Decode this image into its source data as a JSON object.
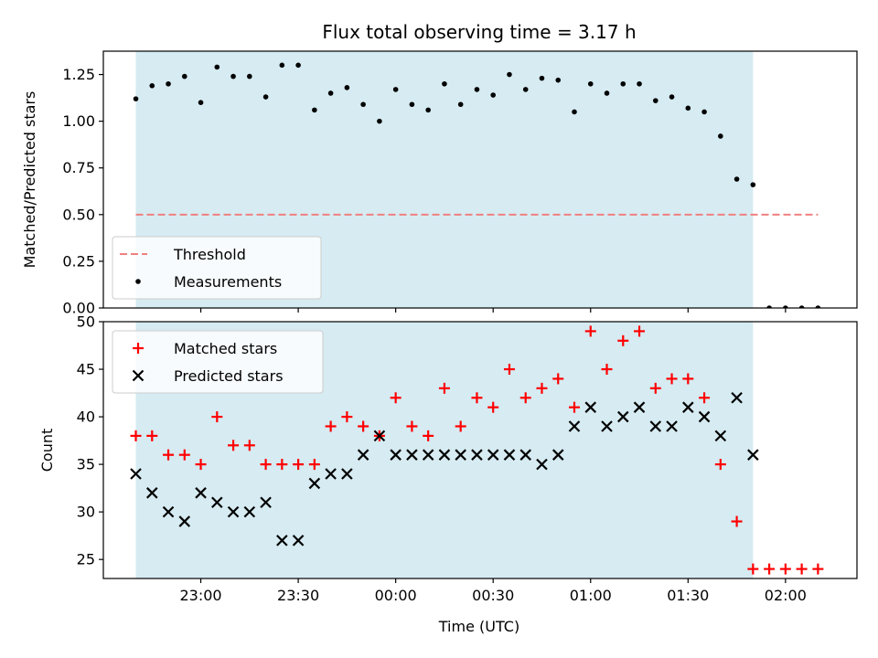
{
  "chart_data": {
    "type": "scatter",
    "title": "Flux total observing time = 3.17 h",
    "xlabel": "Time (UTC)",
    "x_ticks": [
      "23:00",
      "23:30",
      "00:00",
      "00:30",
      "01:00",
      "01:30",
      "02:00"
    ],
    "x_tick_minutes": [
      0,
      30,
      60,
      90,
      120,
      150,
      180
    ],
    "xlim_minutes": [
      -30,
      202
    ],
    "observing_window_minutes": [
      -20,
      170
    ],
    "panels": [
      {
        "ylabel": "Matched/Predicted stars",
        "ylim": [
          0,
          1.375
        ],
        "y_ticks": [
          "0.00",
          "0.25",
          "0.50",
          "0.75",
          "1.00",
          "1.25"
        ],
        "threshold": {
          "name": "Threshold",
          "value": 0.5,
          "x_range_minutes": [
            -20,
            190
          ],
          "color": "#f08080"
        },
        "legend": [
          "Threshold",
          "Measurements"
        ],
        "legend_position": "lower-left",
        "series": [
          {
            "name": "Measurements",
            "color": "#000000",
            "x_minutes": [
              -20,
              -15,
              -10,
              -5,
              0,
              5,
              10,
              15,
              20,
              25,
              30,
              35,
              40,
              45,
              50,
              55,
              60,
              65,
              70,
              75,
              80,
              85,
              90,
              95,
              100,
              105,
              110,
              115,
              120,
              125,
              130,
              135,
              140,
              145,
              150,
              155,
              160,
              165,
              170,
              175,
              180,
              185,
              190
            ],
            "values": [
              1.12,
              1.19,
              1.2,
              1.24,
              1.1,
              1.29,
              1.24,
              1.24,
              1.13,
              1.3,
              1.3,
              1.06,
              1.15,
              1.18,
              1.09,
              1.0,
              1.17,
              1.09,
              1.06,
              1.2,
              1.09,
              1.17,
              1.14,
              1.25,
              1.17,
              1.23,
              1.22,
              1.05,
              1.2,
              1.15,
              1.2,
              1.2,
              1.11,
              1.13,
              1.07,
              1.05,
              0.92,
              0.69,
              0.66,
              0.0,
              0.0,
              0.0,
              0.0
            ]
          }
        ]
      },
      {
        "ylabel": "Count",
        "ylim": [
          23,
          50
        ],
        "y_ticks": [
          "25",
          "30",
          "35",
          "40",
          "45",
          "50"
        ],
        "legend": [
          "Matched stars",
          "Predicted stars"
        ],
        "legend_position": "upper-left",
        "series": [
          {
            "name": "Matched stars",
            "marker": "plus",
            "color": "#ff0000",
            "x_minutes": [
              -20,
              -15,
              -10,
              -5,
              0,
              5,
              10,
              15,
              20,
              25,
              30,
              35,
              40,
              45,
              50,
              55,
              60,
              65,
              70,
              75,
              80,
              85,
              90,
              95,
              100,
              105,
              110,
              115,
              120,
              125,
              130,
              135,
              140,
              145,
              150,
              155,
              160,
              165,
              170,
              175,
              180,
              185,
              190
            ],
            "values": [
              38,
              38,
              36,
              36,
              35,
              40,
              37,
              37,
              35,
              35,
              35,
              35,
              39,
              40,
              39,
              38,
              42,
              39,
              38,
              43,
              39,
              42,
              41,
              45,
              42,
              43,
              44,
              41,
              49,
              45,
              48,
              49,
              43,
              44,
              44,
              42,
              35,
              29,
              24,
              24,
              24,
              24,
              24
            ]
          },
          {
            "name": "Predicted stars",
            "marker": "x",
            "color": "#000000",
            "x_minutes": [
              -20,
              -15,
              -10,
              -5,
              0,
              5,
              10,
              15,
              20,
              25,
              30,
              35,
              40,
              45,
              50,
              55,
              60,
              65,
              70,
              75,
              80,
              85,
              90,
              95,
              100,
              105,
              110,
              115,
              120,
              125,
              130,
              135,
              140,
              145,
              150,
              155,
              160,
              165,
              170
            ],
            "values": [
              34,
              32,
              30,
              29,
              32,
              31,
              30,
              30,
              31,
              27,
              27,
              33,
              34,
              34,
              36,
              38,
              36,
              36,
              36,
              36,
              36,
              36,
              36,
              36,
              36,
              35,
              36,
              39,
              41,
              39,
              40,
              41,
              39,
              39,
              41,
              40,
              38,
              42,
              36
            ]
          }
        ]
      }
    ]
  }
}
